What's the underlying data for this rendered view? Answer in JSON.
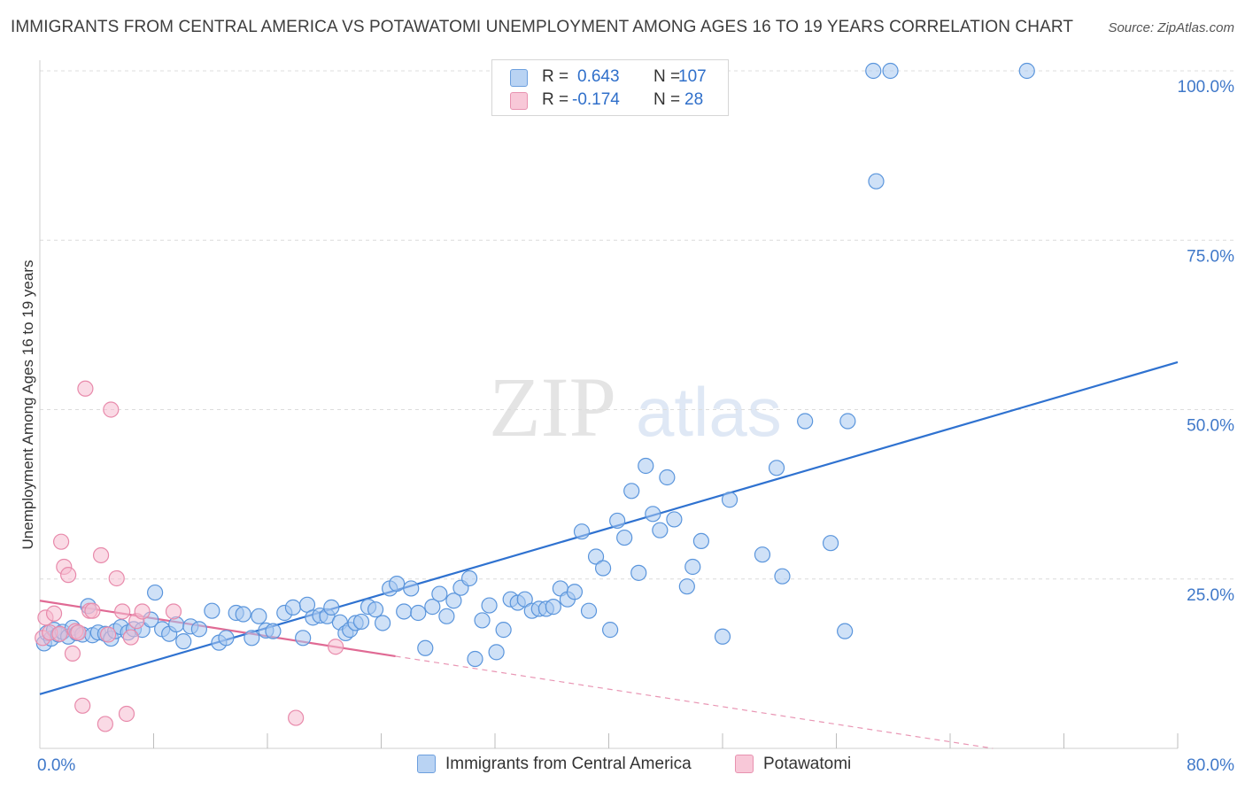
{
  "chart_data": {
    "type": "scatter",
    "title": "IMMIGRANTS FROM CENTRAL AMERICA VS POTAWATOMI UNEMPLOYMENT AMONG AGES 16 TO 19 YEARS CORRELATION CHART",
    "source": "Source: ZipAtlas.com",
    "watermark": {
      "zip": "ZIP",
      "atlas": "atlas"
    },
    "xlabel": "",
    "ylabel": "Unemployment Among Ages 16 to 19 years",
    "xlim": [
      0,
      80
    ],
    "ylim": [
      0,
      105
    ],
    "x_tick_labels": [
      {
        "value": 0,
        "label": "0.0%"
      },
      {
        "value": 80,
        "label": "80.0%"
      }
    ],
    "y_tick_labels": [
      {
        "value": 25,
        "label": "25.0%"
      },
      {
        "value": 50,
        "label": "50.0%"
      },
      {
        "value": 75,
        "label": "75.0%"
      },
      {
        "value": 100,
        "label": "100.0%"
      }
    ],
    "y_gridlines": [
      25,
      50,
      75,
      100
    ],
    "x_minor_ticks": [
      8,
      16,
      24,
      32,
      40,
      48,
      56,
      64,
      72,
      80
    ],
    "legend": [
      {
        "r_label": "R =",
        "r_value": "0.643",
        "n_label": "N =",
        "n_value": "107"
      },
      {
        "r_label": "R =",
        "r_value": "-0.174",
        "n_label": "N =",
        "n_value": "28"
      }
    ],
    "series": [
      {
        "name": "Immigrants from Central America",
        "color": "#a8c8f0",
        "stroke": "#5a95dc",
        "trend_color": "#2f72d0",
        "trend": {
          "x0": 0,
          "y0": 8,
          "x1": 80,
          "y1": 57
        },
        "points": [
          [
            0.3,
            15.5
          ],
          [
            0.5,
            17
          ],
          [
            0.8,
            16.2
          ],
          [
            1,
            17.5
          ],
          [
            1.3,
            16.8
          ],
          [
            1.6,
            17.2
          ],
          [
            2,
            16.5
          ],
          [
            2.3,
            17.8
          ],
          [
            2.6,
            17
          ],
          [
            3,
            16.8
          ],
          [
            3.4,
            21
          ],
          [
            3.7,
            16.7
          ],
          [
            4.1,
            17.1
          ],
          [
            4.6,
            16.9
          ],
          [
            5,
            16.2
          ],
          [
            5.3,
            17.3
          ],
          [
            5.7,
            17.9
          ],
          [
            6.2,
            17.1
          ],
          [
            6.6,
            17.6
          ],
          [
            7.2,
            17.5
          ],
          [
            7.8,
            19
          ],
          [
            8.1,
            23
          ],
          [
            8.6,
            17.6
          ],
          [
            9.1,
            16.9
          ],
          [
            9.6,
            18.3
          ],
          [
            10.1,
            15.8
          ],
          [
            10.6,
            18
          ],
          [
            11.2,
            17.6
          ],
          [
            12.1,
            20.3
          ],
          [
            12.6,
            15.6
          ],
          [
            13.1,
            16.3
          ],
          [
            13.8,
            20
          ],
          [
            14.3,
            19.8
          ],
          [
            14.9,
            16.3
          ],
          [
            15.4,
            19.5
          ],
          [
            15.9,
            17.4
          ],
          [
            16.4,
            17.3
          ],
          [
            17.2,
            20
          ],
          [
            17.8,
            20.8
          ],
          [
            18.5,
            16.3
          ],
          [
            18.8,
            21.2
          ],
          [
            19.2,
            19.3
          ],
          [
            19.7,
            19.6
          ],
          [
            20.2,
            19.5
          ],
          [
            20.5,
            20.8
          ],
          [
            21.1,
            18.6
          ],
          [
            21.5,
            17
          ],
          [
            21.8,
            17.5
          ],
          [
            22.2,
            18.5
          ],
          [
            22.6,
            18.7
          ],
          [
            23.1,
            20.9
          ],
          [
            23.6,
            20.5
          ],
          [
            24.1,
            18.5
          ],
          [
            24.6,
            23.6
          ],
          [
            25.1,
            24.3
          ],
          [
            25.6,
            20.2
          ],
          [
            26.1,
            23.6
          ],
          [
            26.6,
            20
          ],
          [
            27.1,
            14.8
          ],
          [
            27.6,
            20.9
          ],
          [
            28.1,
            22.8
          ],
          [
            28.6,
            19.5
          ],
          [
            29.1,
            21.8
          ],
          [
            29.6,
            23.7
          ],
          [
            30.2,
            25.1
          ],
          [
            30.6,
            13.2
          ],
          [
            31.1,
            18.9
          ],
          [
            31.6,
            21.1
          ],
          [
            32.1,
            14.2
          ],
          [
            32.6,
            17.5
          ],
          [
            33.1,
            22
          ],
          [
            33.6,
            21.5
          ],
          [
            34.1,
            22
          ],
          [
            34.6,
            20.3
          ],
          [
            35.1,
            20.6
          ],
          [
            35.6,
            20.6
          ],
          [
            36.1,
            20.9
          ],
          [
            36.6,
            23.6
          ],
          [
            37.1,
            22
          ],
          [
            37.6,
            23.1
          ],
          [
            38.1,
            32
          ],
          [
            38.6,
            20.3
          ],
          [
            39.1,
            28.3
          ],
          [
            39.6,
            26.6
          ],
          [
            40.1,
            17.5
          ],
          [
            40.6,
            33.6
          ],
          [
            41.1,
            31.1
          ],
          [
            41.6,
            38
          ],
          [
            42.1,
            25.9
          ],
          [
            42.6,
            41.7
          ],
          [
            43.1,
            34.6
          ],
          [
            43.6,
            32.2
          ],
          [
            44.1,
            40
          ],
          [
            44.6,
            33.8
          ],
          [
            45.5,
            23.9
          ],
          [
            45.9,
            26.8
          ],
          [
            46.5,
            30.6
          ],
          [
            48,
            16.5
          ],
          [
            48.5,
            36.7
          ],
          [
            50.8,
            28.6
          ],
          [
            51.8,
            41.4
          ],
          [
            52.2,
            25.4
          ],
          [
            53.8,
            48.3
          ],
          [
            55.6,
            30.3
          ],
          [
            56.6,
            17.3
          ],
          [
            56.8,
            48.3
          ],
          [
            58.6,
            100
          ],
          [
            58.8,
            83.7
          ],
          [
            59.8,
            100
          ],
          [
            69.4,
            100
          ]
        ]
      },
      {
        "name": "Potawatomi",
        "color": "#f6bcd0",
        "stroke": "#e88aab",
        "trend_color": "#e06a94",
        "trend": {
          "x0": 0,
          "y0": 21.8,
          "x1": 25,
          "y1": 13.6
        },
        "trend_dashed": {
          "x0": 25,
          "y0": 13.6,
          "x1": 67,
          "y1": 0
        },
        "points": [
          [
            0.2,
            16.3
          ],
          [
            0.4,
            19.3
          ],
          [
            0.7,
            17.1
          ],
          [
            1,
            19.9
          ],
          [
            1.4,
            16.9
          ],
          [
            1.5,
            30.5
          ],
          [
            1.7,
            26.8
          ],
          [
            2,
            25.6
          ],
          [
            2.3,
            14
          ],
          [
            2.5,
            17.3
          ],
          [
            2.7,
            17.1
          ],
          [
            3,
            6.3
          ],
          [
            3.2,
            53.1
          ],
          [
            3.5,
            20.3
          ],
          [
            3.7,
            20.3
          ],
          [
            4.3,
            28.5
          ],
          [
            4.6,
            3.6
          ],
          [
            4.8,
            16.8
          ],
          [
            5,
            50
          ],
          [
            5.4,
            25.1
          ],
          [
            5.8,
            20.2
          ],
          [
            6.1,
            5.1
          ],
          [
            6.4,
            16.4
          ],
          [
            6.8,
            18.8
          ],
          [
            7.2,
            20.2
          ],
          [
            9.4,
            20.2
          ],
          [
            18,
            4.5
          ],
          [
            20.8,
            15
          ]
        ]
      }
    ]
  }
}
